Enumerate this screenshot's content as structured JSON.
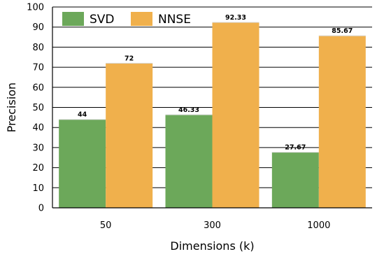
{
  "chart_data": {
    "type": "bar",
    "title": "",
    "xlabel": "Dimensions (k)",
    "ylabel": "Precision",
    "ylim": [
      0,
      100
    ],
    "yticks": [
      0,
      10,
      20,
      30,
      40,
      50,
      60,
      70,
      80,
      90,
      100
    ],
    "categories": [
      "50",
      "300",
      "1000"
    ],
    "series": [
      {
        "name": "SVD",
        "values": [
          44,
          46.33,
          27.67
        ],
        "labels": [
          "44",
          "46.33",
          "27.67"
        ],
        "color": "#6ca85a"
      },
      {
        "name": "NNSE",
        "values": [
          72,
          92.33,
          85.67
        ],
        "labels": [
          "72",
          "92.33",
          "85.67"
        ],
        "color": "#f0b04c"
      }
    ],
    "grid": true,
    "legend": "top-left"
  }
}
